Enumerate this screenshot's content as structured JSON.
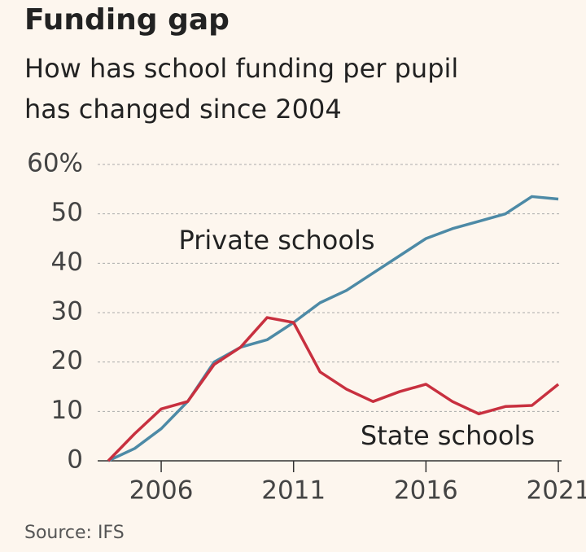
{
  "chart_data": {
    "type": "line",
    "title": "Funding gap",
    "subtitle": [
      "How has school funding per pupil",
      "has changed since 2004"
    ],
    "source": "Source: IFS",
    "x": [
      2004,
      2005,
      2006,
      2007,
      2008,
      2009,
      2010,
      2011,
      2012,
      2013,
      2014,
      2015,
      2016,
      2017,
      2018,
      2019,
      2020,
      2021
    ],
    "series": [
      {
        "name": "Private schools",
        "color": "#4d8aa6",
        "values": [
          0,
          2.5,
          6.5,
          12,
          20,
          23,
          24.5,
          28,
          32,
          34.5,
          38,
          41.5,
          45,
          47,
          48.5,
          50,
          53.5,
          53
        ]
      },
      {
        "name": "State schools",
        "color": "#c8303f",
        "values": [
          0,
          5.5,
          10.5,
          12,
          19.5,
          23,
          29,
          28,
          18,
          14.5,
          12,
          14,
          15.5,
          12,
          9.5,
          11,
          11.2,
          15.5
        ]
      }
    ],
    "xlim": [
      2004,
      2021
    ],
    "xticks": [
      2006,
      2011,
      2016,
      2021
    ],
    "ylim": [
      0,
      60
    ],
    "yticks": [
      0,
      10,
      20,
      30,
      40,
      {
        "value": 60,
        "label": "60%"
      },
      50
    ],
    "grid": true
  }
}
